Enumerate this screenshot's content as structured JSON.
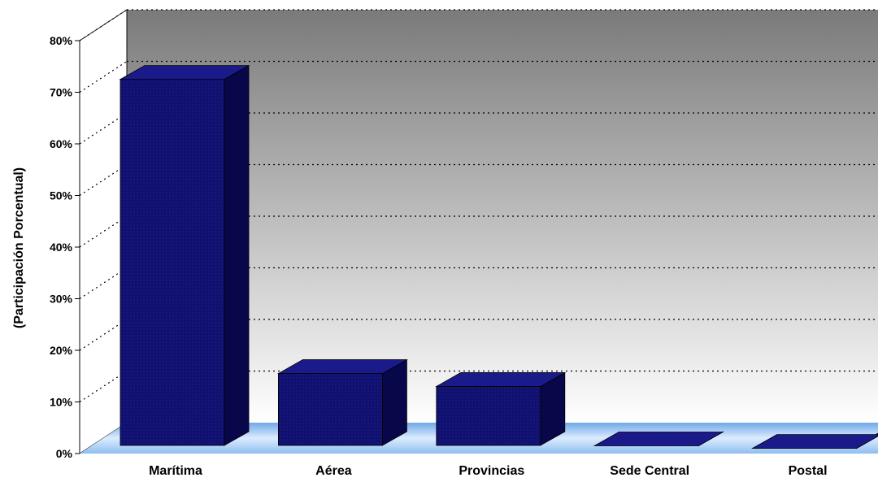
{
  "chart_data": {
    "type": "bar",
    "categories": [
      "Marítima",
      "Aérea",
      "Provincias",
      "Sede Central",
      "Postal"
    ],
    "series": [
      {
        "values": [
          72.5,
          15.5,
          13.0,
          1.5,
          1.0
        ]
      }
    ],
    "ylabel": "(Participación Porcentual)",
    "xlabel": "",
    "ylim": [
      0,
      80
    ],
    "yticks": [
      "0%",
      "10%",
      "20%",
      "30%",
      "40%",
      "50%",
      "60%",
      "70%",
      "80%"
    ],
    "ytick_values": [
      0,
      10,
      20,
      30,
      40,
      50,
      60,
      70,
      80
    ],
    "grid": true,
    "three_d": true,
    "legend": "none"
  },
  "colors": {
    "bar_front": "#101070",
    "bar_top": "#1a1a8a",
    "bar_side": "#07074a",
    "wall_top": "#7a7a7a",
    "wall_bottom": "#ffffff",
    "floor": "#a9cdf2"
  }
}
